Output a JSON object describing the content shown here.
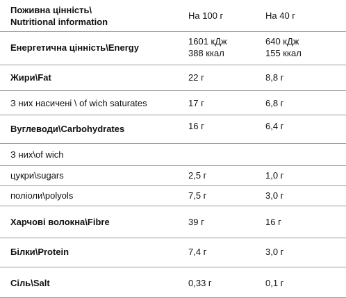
{
  "header": {
    "title_line1": "Поживна цінність\\",
    "title_line2": "Nutritional information",
    "col1": "На 100 г",
    "col2": "На 40 г"
  },
  "rows": [
    {
      "name": "Енергетична цінність\\Energy",
      "bold": true,
      "v1": "1601 кДж",
      "v1b": "388 ккал",
      "v2": "640 кДж",
      "v2b": "155 ккал"
    },
    {
      "name": "Жири\\Fat",
      "bold": true,
      "v1": "22 г",
      "v2": "8,8 г"
    },
    {
      "name": "З них насичені \\ of wich saturates",
      "bold": false,
      "v1": "17 г",
      "v2": "6,8 г"
    },
    {
      "name": "Вуглеводи\\Carbohydrates",
      "bold": true,
      "v1": "16 г",
      "v2": "6,4 г"
    },
    {
      "name": "З них\\of wich",
      "bold": false,
      "v1": "",
      "v2": ""
    },
    {
      "name": "цукри\\sugars",
      "bold": false,
      "v1": "2,5 г",
      "v2": "1,0 г"
    },
    {
      "name": "поліоли\\polyols",
      "bold": false,
      "v1": "7,5 г",
      "v2": "3,0 г"
    },
    {
      "name": "Харчові волокна\\Fibre",
      "bold": true,
      "v1": "39 г",
      "v2": "16 г"
    },
    {
      "name": "Білки\\Protein",
      "bold": true,
      "v1": "7,4 г",
      "v2": "3,0 г"
    },
    {
      "name": "Сіль\\Salt",
      "bold": true,
      "v1": "0,33 г",
      "v2": "0,1 г"
    }
  ]
}
